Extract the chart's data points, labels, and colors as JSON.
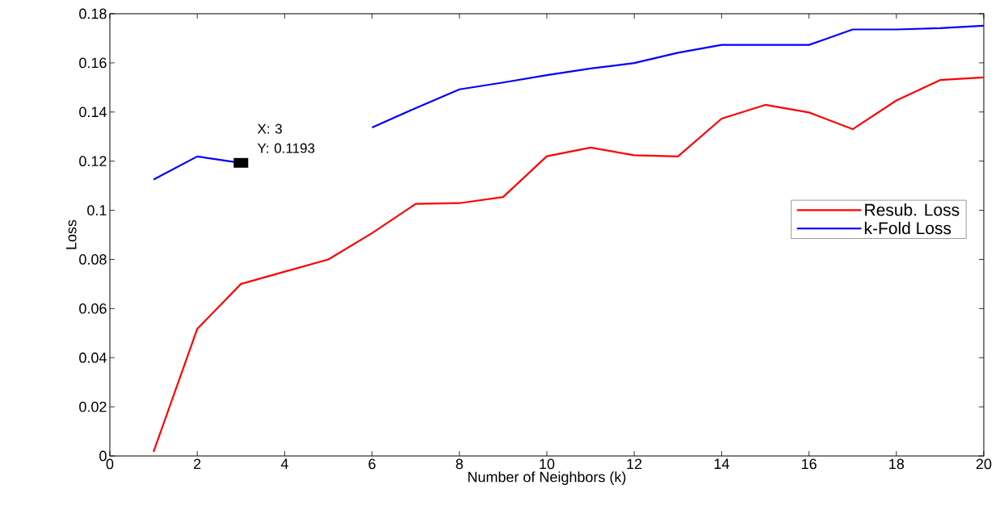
{
  "chart_data": {
    "type": "line",
    "xlabel": "Number of Neighbors (k)",
    "ylabel": "Loss",
    "x": [
      1,
      2,
      3,
      4,
      5,
      6,
      7,
      8,
      9,
      10,
      11,
      12,
      13,
      14,
      15,
      16,
      17,
      18,
      19,
      20
    ],
    "series": [
      {
        "name": "Resub. Loss",
        "color": "#ff0000",
        "values": [
          0.0017,
          0.0517,
          0.07,
          0.075,
          0.08,
          0.0907,
          0.1026,
          0.1029,
          0.1054,
          0.122,
          0.1255,
          0.1224,
          0.1219,
          0.1373,
          0.1429,
          0.1398,
          0.133,
          0.1447,
          0.153,
          0.1541
        ]
      },
      {
        "name": "k-Fold Loss",
        "color": "#0000ff",
        "values": [
          0.1125,
          0.1219,
          0.1193,
          null,
          null,
          0.1337,
          0.1416,
          0.1492,
          0.152,
          0.155,
          0.1577,
          0.1599,
          0.1641,
          0.1673,
          0.1673,
          0.1673,
          0.1736,
          0.1736,
          0.1741,
          0.1751
        ]
      }
    ],
    "annotations": [
      {
        "text": "X: 3",
        "x": 3,
        "y": 0.1193
      },
      {
        "text": "Y: 0.1193",
        "x": 3,
        "y": 0.1193
      }
    ],
    "xlim": [
      0,
      20
    ],
    "ylim": [
      0,
      0.18
    ],
    "xticks": [
      0,
      2,
      4,
      6,
      8,
      10,
      12,
      14,
      16,
      18,
      20
    ],
    "yticks": [
      0,
      0.02,
      0.04,
      0.06,
      0.08,
      0.1,
      0.12,
      0.14,
      0.16,
      0.18
    ],
    "legend": "right",
    "grid": false,
    "marker": "none",
    "line_style": "solid"
  }
}
